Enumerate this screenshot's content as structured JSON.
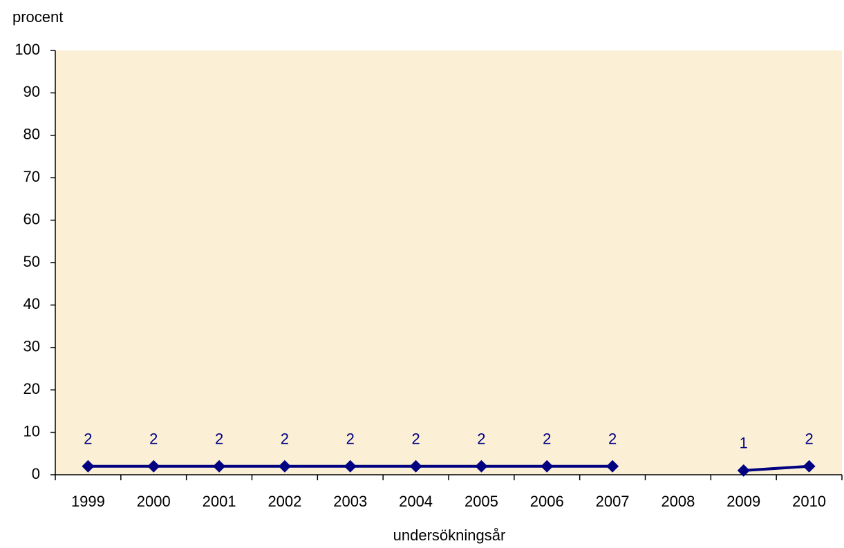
{
  "chart_data": {
    "type": "line",
    "y_label": "procent",
    "x_label": "undersökningsår",
    "categories": [
      "1999",
      "2000",
      "2001",
      "2002",
      "2003",
      "2004",
      "2005",
      "2006",
      "2007",
      "2008",
      "2009",
      "2010"
    ],
    "series": [
      {
        "name": "procent",
        "color": "#000080",
        "values": [
          2,
          2,
          2,
          2,
          2,
          2,
          2,
          2,
          2,
          null,
          1,
          2
        ]
      }
    ],
    "ylim": [
      0,
      100
    ],
    "yticks": [
      0,
      10,
      20,
      30,
      40,
      50,
      60,
      70,
      80,
      90,
      100
    ],
    "plot_background": "#fbefd6",
    "data_labels": true
  }
}
